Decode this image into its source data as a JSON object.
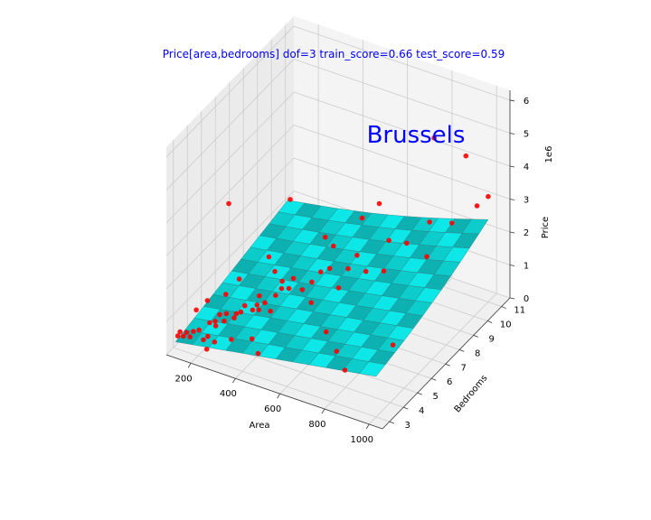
{
  "chart_data": {
    "type": "scatter",
    "subtype": "3d-scatter-with-regression-surface",
    "title": "Price[area,bedrooms]  dof=3  train_score=0.66  test_score=0.59",
    "annotation": "Brussels",
    "xlabel": "Area",
    "ylabel": "Bedrooms",
    "zlabel": "Price",
    "z_offset_text": "1e6",
    "xlim": [
      90,
      1060
    ],
    "ylim": [
      2.5,
      11.6
    ],
    "zlim": [
      0,
      6.3
    ],
    "x_ticks": [
      "200",
      "400",
      "600",
      "800",
      "1000"
    ],
    "y_ticks": [
      "3",
      "4",
      "5",
      "6",
      "7",
      "8",
      "9",
      "10",
      "11"
    ],
    "z_ticks": [
      "0",
      "1",
      "2",
      "3",
      "4",
      "5",
      "6"
    ],
    "grid": true,
    "colors": {
      "title": "#0000ff",
      "annotation": "#0000ff",
      "points": "#ff0000",
      "surface": "#00e6e6",
      "surface_edge": "#2a8080",
      "pane_left": "#ebebeb",
      "pane_back": "#f4f4f4",
      "pane_floor": "#f0f0f0",
      "grid": "#cccccc"
    },
    "surface_model": {
      "type": "polynomial-degree-2",
      "x_range": [
        100,
        1000
      ],
      "y_range": [
        3,
        11
      ],
      "z_range_millions": [
        0.2,
        2.5
      ]
    },
    "series": [
      {
        "marker": "circle",
        "points_millions": [
          [
            110,
            3,
            0.4
          ],
          [
            120,
            3,
            0.55
          ],
          [
            135,
            3,
            0.45
          ],
          [
            150,
            3,
            0.6
          ],
          [
            165,
            3,
            0.5
          ],
          [
            180,
            3,
            0.7
          ],
          [
            190,
            4,
            0.55
          ],
          [
            205,
            3,
            0.8
          ],
          [
            215,
            4,
            0.65
          ],
          [
            225,
            3,
            0.55
          ],
          [
            235,
            4,
            0.9
          ],
          [
            245,
            3,
            0.7
          ],
          [
            255,
            4,
            0.75
          ],
          [
            265,
            4,
            1.0
          ],
          [
            275,
            3,
            0.6
          ],
          [
            285,
            5,
            0.85
          ],
          [
            300,
            4,
            0.95
          ],
          [
            310,
            4,
            1.1
          ],
          [
            320,
            5,
            0.8
          ],
          [
            330,
            4,
            1.2
          ],
          [
            340,
            5,
            1.0
          ],
          [
            350,
            5,
            1.3
          ],
          [
            360,
            6,
            0.9
          ],
          [
            375,
            5,
            1.15
          ],
          [
            390,
            6,
            1.4
          ],
          [
            400,
            5,
            0.95
          ],
          [
            420,
            6,
            1.25
          ],
          [
            440,
            6,
            1.6
          ],
          [
            460,
            7,
            1.1
          ],
          [
            480,
            6,
            1.35
          ],
          [
            500,
            7,
            1.5
          ],
          [
            520,
            6,
            1.05
          ],
          [
            540,
            7,
            1.7
          ],
          [
            560,
            8,
            1.3
          ],
          [
            580,
            7,
            1.2
          ],
          [
            600,
            8,
            1.8
          ],
          [
            640,
            8,
            1.4
          ],
          [
            680,
            9,
            2.0
          ],
          [
            720,
            8,
            1.6
          ],
          [
            760,
            9,
            2.1
          ],
          [
            800,
            10,
            2.4
          ],
          [
            850,
            9,
            1.9
          ],
          [
            900,
            10,
            2.6
          ],
          [
            950,
            11,
            2.8
          ],
          [
            1000,
            11,
            3.2
          ],
          [
            180,
            4,
            1.2
          ],
          [
            260,
            5,
            1.6
          ],
          [
            330,
            6,
            2.0
          ],
          [
            420,
            5,
            2.2
          ],
          [
            520,
            7,
            2.6
          ],
          [
            620,
            6,
            3.0
          ],
          [
            700,
            8,
            3.6
          ],
          [
            820,
            10,
            5.0
          ],
          [
            300,
            8,
            2.8
          ],
          [
            150,
            6,
            3.2
          ],
          [
            900,
            11,
            4.2
          ],
          [
            560,
            9,
            2.4
          ],
          [
            240,
            3,
            0.3
          ],
          [
            380,
            4,
            0.5
          ],
          [
            470,
            3,
            0.7
          ],
          [
            650,
            5,
            0.9
          ],
          [
            760,
            4,
            1.0
          ],
          [
            860,
            3,
            1.1
          ],
          [
            950,
            5,
            1.2
          ],
          [
            130,
            4,
            0.8
          ],
          [
            200,
            5,
            1.0
          ],
          [
            280,
            3,
            1.1
          ],
          [
            350,
            3,
            0.85
          ],
          [
            410,
            4,
            1.45
          ],
          [
            450,
            5,
            1.75
          ]
        ]
      }
    ]
  }
}
